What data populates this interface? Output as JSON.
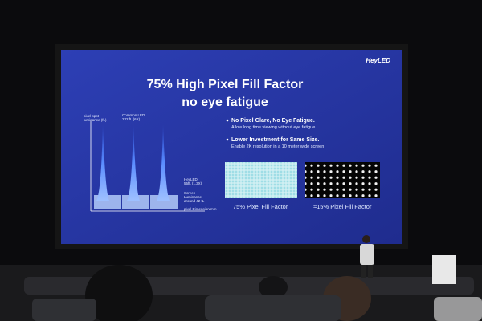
{
  "slide": {
    "logo": "HeyLED",
    "title": [
      "75% High Pixel Fill Factor",
      "no eye fatigue"
    ],
    "diagram": {
      "y_axis_label": [
        "pixel spot",
        "luminance (fL)"
      ],
      "common_led_label": [
        "Common LED",
        "232 fL (6X)"
      ],
      "heyled_label": [
        "HeyLED",
        "55fL (1.3X)"
      ],
      "screen_label": [
        "Screen",
        "Luminance",
        "around 42 fL"
      ],
      "x_axis_label": "pixel Dimension/mm"
    },
    "bullets": [
      {
        "heading": "No Pixel Glare, No Eye Fatigue.",
        "detail": "Allow long time viewing without eye fatigue"
      },
      {
        "heading": "Lower Investment for Same Size.",
        "detail": "Enable 2K resolution in a 10 meter wide screen"
      }
    ],
    "captions": [
      "75% Pixel Fill Factor",
      "≈15% Pixel Fill Factor"
    ]
  }
}
